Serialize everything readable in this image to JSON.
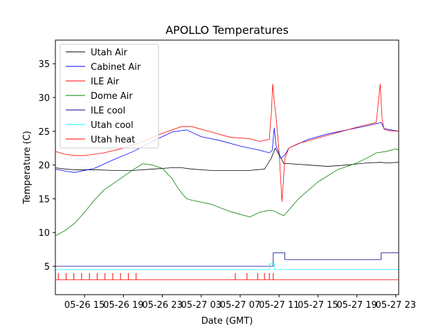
{
  "chart_data": {
    "type": "line",
    "title": "APOLLO Temperatures",
    "xlabel": "Date (GMT)",
    "ylabel": "Temperature (C)",
    "x_unit": "hours since 2025-05-26 12:00 GMT",
    "xlim": [
      0,
      35.3
    ],
    "ylim": [
      0.8,
      38.5
    ],
    "x_ticks": [
      {
        "x": 3,
        "label": "05-26 15"
      },
      {
        "x": 7,
        "label": "05-26 19"
      },
      {
        "x": 11,
        "label": "05-26 23"
      },
      {
        "x": 15,
        "label": "05-27 03"
      },
      {
        "x": 19,
        "label": "05-27 07"
      },
      {
        "x": 23,
        "label": "05-27 11"
      },
      {
        "x": 27,
        "label": "05-27 15"
      },
      {
        "x": 31,
        "label": "05-27 19"
      },
      {
        "x": 35,
        "label": "05-27 23"
      }
    ],
    "y_ticks": [
      5,
      10,
      15,
      20,
      25,
      30,
      35
    ],
    "legend_position": "top-left",
    "series": [
      {
        "name": "Utah Air",
        "color": "#000000",
        "x": [
          0,
          1,
          2,
          4,
          6,
          8,
          10,
          12,
          13,
          14,
          16,
          18,
          20,
          21.5,
          22.2,
          22.6,
          23,
          23.5,
          24,
          26,
          28,
          30,
          32,
          33.5,
          34,
          35.3
        ],
        "y": [
          19.6,
          19.4,
          19.3,
          19.3,
          19.2,
          19.2,
          19.4,
          19.6,
          19.6,
          19.4,
          19.2,
          19.2,
          19.2,
          19.4,
          21,
          22.5,
          21.5,
          20.2,
          20.2,
          20.0,
          19.8,
          20.0,
          20.3,
          20.4,
          20.3,
          20.4
        ]
      },
      {
        "name": "Cabinet Air",
        "color": "#0000ff",
        "x": [
          0,
          1,
          2,
          4,
          6,
          8,
          10,
          12,
          13.5,
          15,
          17,
          19,
          21,
          22,
          22.3,
          22.5,
          22.7,
          23.2,
          23.6,
          24,
          26,
          28,
          30,
          32,
          33.5,
          33.8,
          34.5,
          35.3
        ],
        "y": [
          19.4,
          19.1,
          18.9,
          19.5,
          20.8,
          22,
          23.5,
          24.9,
          25.2,
          24.2,
          23.6,
          22.8,
          22.2,
          21.8,
          22.2,
          25.5,
          22.8,
          21,
          21.5,
          22.5,
          23.8,
          24.6,
          25.2,
          25.8,
          26.3,
          25.4,
          25.2,
          25.0
        ]
      },
      {
        "name": "ILE Air",
        "color": "#ff0000",
        "x": [
          0,
          1,
          2,
          3,
          5,
          7,
          9,
          11,
          13,
          14,
          16,
          18,
          20,
          21,
          22,
          22.1,
          22.2,
          22.35,
          22.5,
          22.7,
          23,
          23.3,
          23.6,
          24,
          25,
          27,
          29,
          31,
          33,
          33.4,
          33.6,
          33.8,
          34.2,
          35.3
        ],
        "y": [
          22,
          21.6,
          21.4,
          21.4,
          21.8,
          22.5,
          23.5,
          24.7,
          25.7,
          25.7,
          24.9,
          24.1,
          23.9,
          23.5,
          23.8,
          26,
          27.5,
          32,
          29.5,
          27,
          22,
          14.6,
          21,
          22.5,
          23.2,
          24.0,
          24.8,
          25.6,
          26.3,
          32,
          26.7,
          25.3,
          25.1,
          25.0
        ]
      },
      {
        "name": "Dome Air",
        "color": "#008000",
        "x": [
          0,
          1,
          2,
          3,
          4,
          5,
          6,
          7,
          8,
          9,
          10,
          11,
          12,
          12.5,
          13,
          13.5,
          14,
          16,
          18,
          20,
          21,
          22,
          22.5,
          23,
          23.5,
          25,
          27,
          29,
          31,
          32,
          33,
          34,
          35,
          35.3
        ],
        "y": [
          9.5,
          10.3,
          11.4,
          13,
          14.8,
          16.3,
          17.3,
          18.3,
          19.3,
          20.2,
          20.0,
          19.5,
          18.0,
          16.8,
          15.8,
          15.0,
          14.8,
          14.2,
          13.1,
          12.3,
          13.0,
          13.3,
          13.2,
          12.8,
          12.5,
          15,
          17.5,
          19.3,
          20.3,
          21.0,
          21.8,
          22.0,
          22.4,
          22.2
        ]
      },
      {
        "name": "ILE cool",
        "color": "#00008b",
        "x": [
          0,
          22.2,
          22.4,
          23.5,
          23.6,
          33.4,
          33.5,
          35.3
        ],
        "y": [
          5,
          5,
          7,
          7,
          6,
          6,
          7,
          7
        ]
      },
      {
        "name": "Utah cool",
        "color": "#00ffff",
        "x": [
          0,
          22,
          22.05,
          22.5,
          22.55,
          35.3
        ],
        "y": [
          4.5,
          4.5,
          5.4,
          5.4,
          4.5,
          4.5
        ]
      },
      {
        "name": "Utah heat",
        "color": "#ff0000",
        "x": [
          0,
          35.3
        ],
        "y": [
          3,
          3
        ]
      }
    ]
  }
}
